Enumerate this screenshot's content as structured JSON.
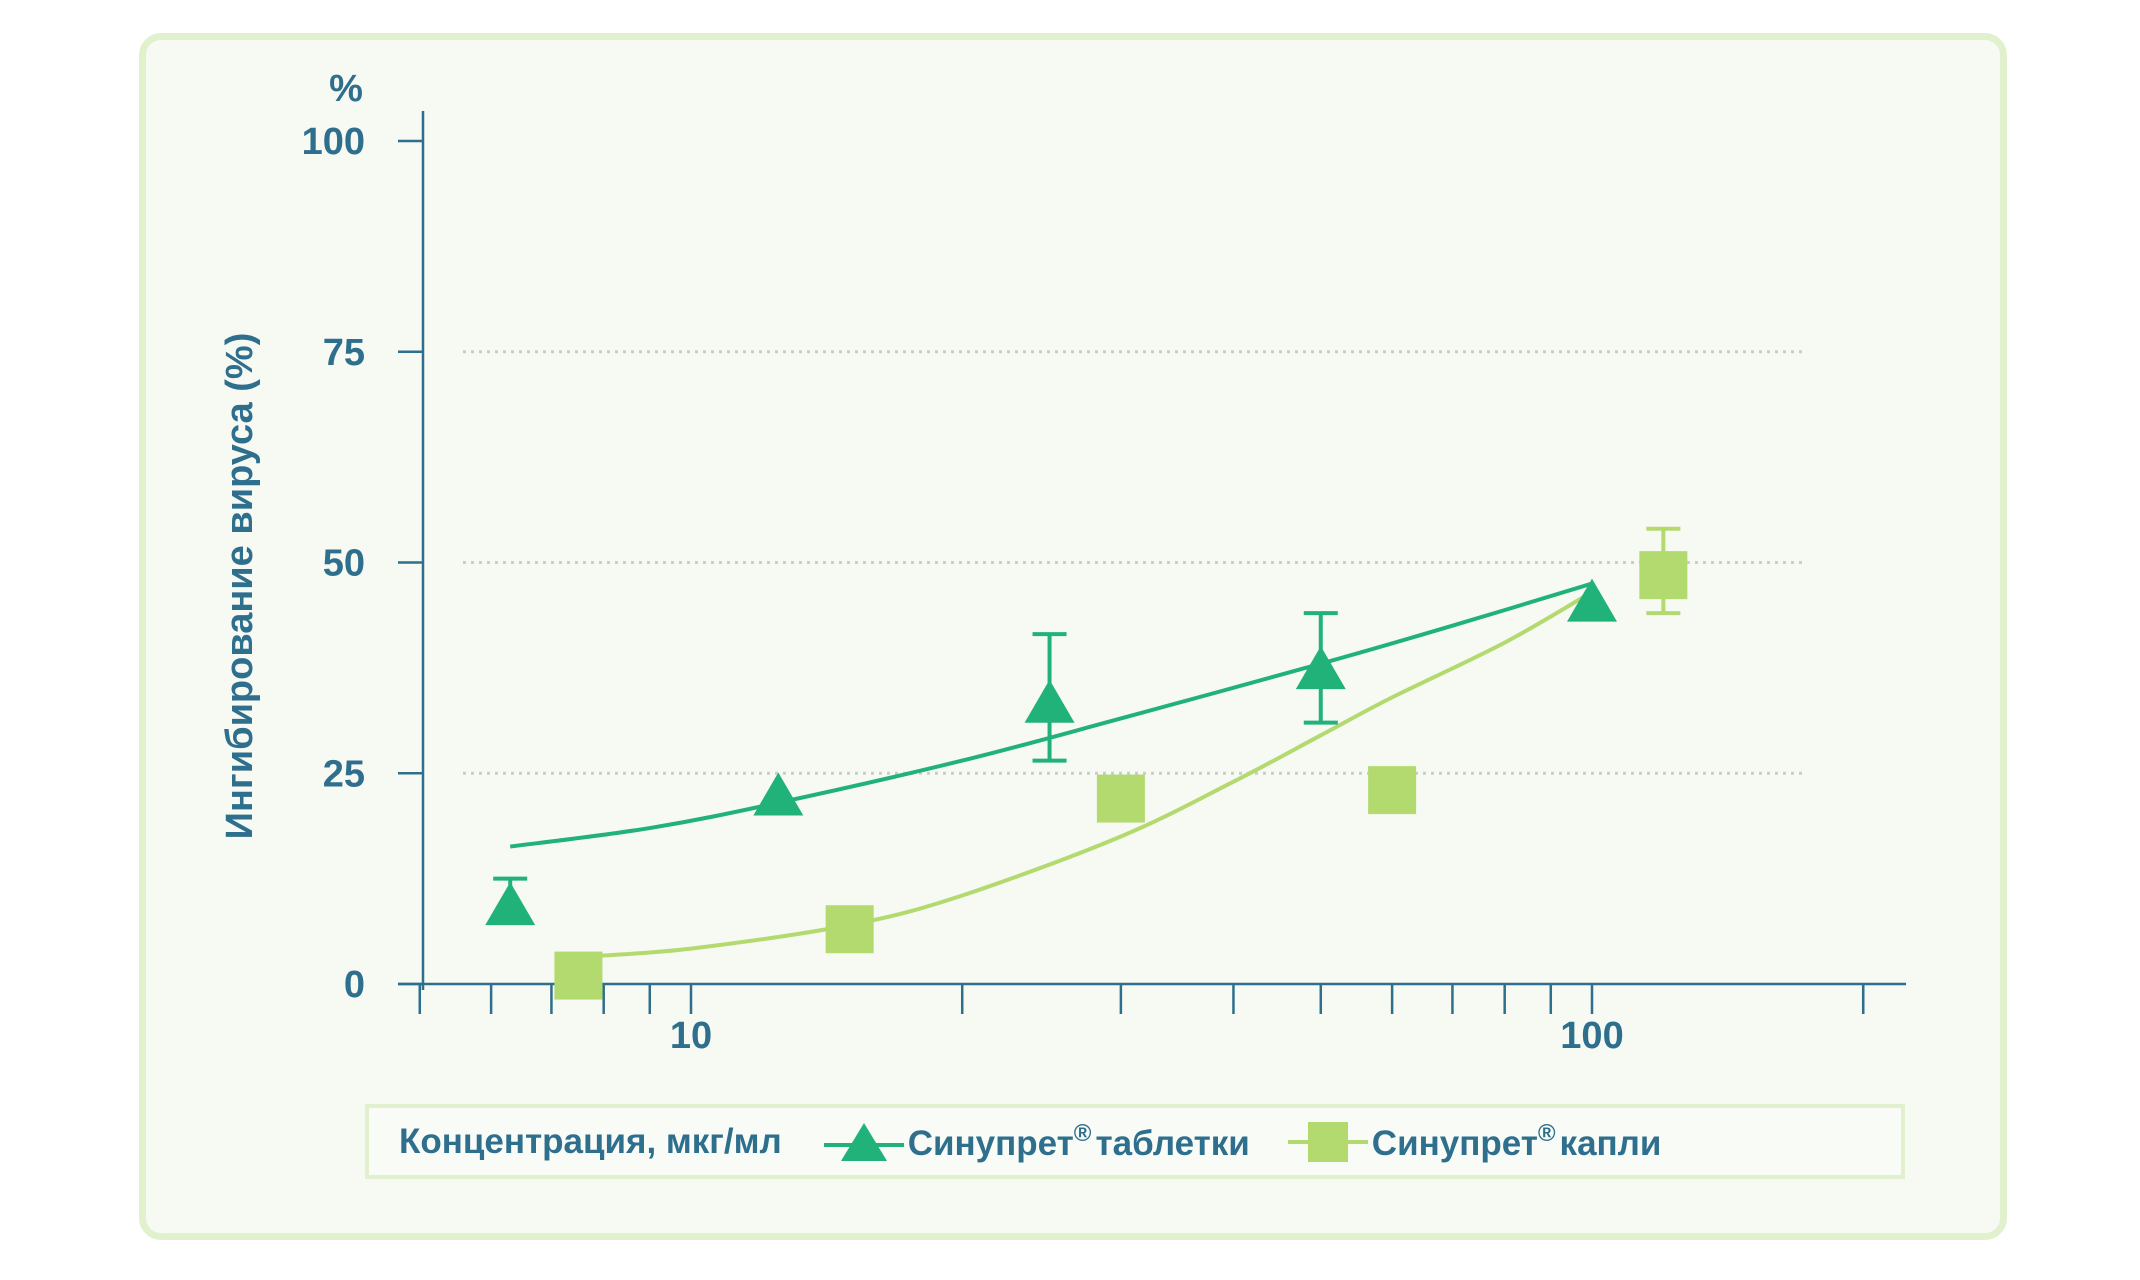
{
  "chart_data": {
    "type": "scatter",
    "x_scale": "log",
    "x_ticks": [
      10,
      100
    ],
    "xlim": [
      5,
      200
    ],
    "y_unit": "%",
    "ylabel": "Ингибирование вируса (%)",
    "ylim": [
      0,
      100
    ],
    "y_ticks": [
      0,
      25,
      50,
      75,
      100
    ],
    "grid": "dotted horizontal at 25, 50, 75",
    "legend_title": "Концентрация, мкг/мл",
    "legend_position": "bottom",
    "series": [
      {
        "name": "Синупрет",
        "name_suffix": "таблетки",
        "marker": "triangle",
        "color": "#21b27a",
        "points": [
          {
            "x": 6.3,
            "y": 9,
            "err": [
              null,
              12.5
            ]
          },
          {
            "x": 12.5,
            "y": 22
          },
          {
            "x": 25,
            "y": 33,
            "err": [
              26.5,
              41.5
            ]
          },
          {
            "x": 50,
            "y": 37,
            "err": [
              31,
              44
            ]
          },
          {
            "x": 100,
            "y": 45
          }
        ],
        "fit": [
          [
            6.3,
            16.3
          ],
          [
            9,
            18.5
          ],
          [
            12.5,
            21.5
          ],
          [
            20,
            26.5
          ],
          [
            30,
            31.5
          ],
          [
            50,
            38
          ],
          [
            70,
            42.5
          ],
          [
            100,
            47.5
          ]
        ]
      },
      {
        "name": "Синупрет",
        "name_suffix": "капли",
        "marker": "square",
        "color": "#b3da6e",
        "points": [
          {
            "x": 7.5,
            "y": 1
          },
          {
            "x": 15,
            "y": 6.5
          },
          {
            "x": 30,
            "y": 22
          },
          {
            "x": 60,
            "y": 23
          },
          {
            "x": 120,
            "y": 48.5,
            "err": [
              44,
              54
            ]
          }
        ],
        "fit": [
          [
            7.5,
            3.2
          ],
          [
            10,
            4.2
          ],
          [
            15,
            7
          ],
          [
            20,
            10.5
          ],
          [
            30,
            17.5
          ],
          [
            40,
            24
          ],
          [
            50,
            29.5
          ],
          [
            60,
            34
          ],
          [
            80,
            40.5
          ],
          [
            100,
            46.5
          ]
        ]
      }
    ]
  },
  "axis": {
    "y_unit_label": "%",
    "ylabel": "Ингибирование вируса (%)",
    "y_tick_labels": [
      "0",
      "25",
      "50",
      "75",
      "100"
    ],
    "x_tick_labels": [
      "10",
      "100"
    ]
  },
  "legend": {
    "xlabel": "Концентрация, мкг/мл",
    "items": [
      {
        "prefix": "Синупрет",
        "sup": "®",
        "suffix": "таблетки"
      },
      {
        "prefix": "Синупрет",
        "sup": "®",
        "suffix": "капли"
      }
    ]
  },
  "colors": {
    "axis": "#2f6f8e",
    "tablets": "#21b27a",
    "drops": "#b3da6e",
    "panel_bg": "#f7f9f3",
    "panel_border": "#e2f1cd"
  }
}
